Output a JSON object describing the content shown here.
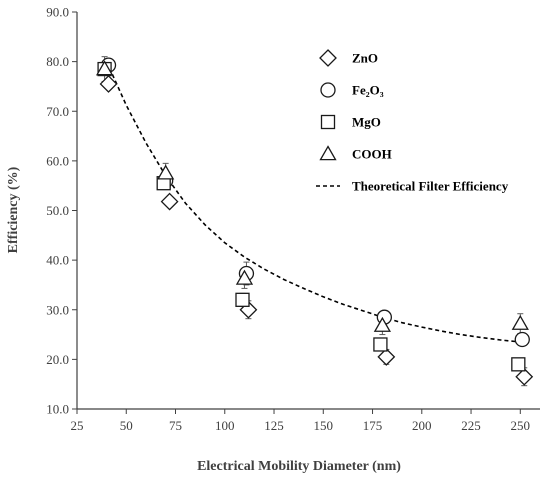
{
  "chart_data": {
    "type": "scatter",
    "xlabel": "Electrical Mobility Diameter (nm)",
    "ylabel": "Efficiency (%)",
    "xlim": [
      25,
      260
    ],
    "ylim": [
      10,
      90
    ],
    "x_ticks": [
      25,
      50,
      75,
      100,
      125,
      150,
      175,
      200,
      225,
      250
    ],
    "y_ticks": [
      10,
      20,
      30,
      40,
      50,
      60,
      70,
      80,
      90
    ],
    "x_tick_labels": [
      "25",
      "50",
      "75",
      "100",
      "125",
      "150",
      "175",
      "200",
      "225",
      "250"
    ],
    "y_tick_labels": [
      "10.0",
      "20.0",
      "30.0",
      "40.0",
      "50.0",
      "60.0",
      "70.0",
      "80.0",
      "90.0"
    ],
    "grid": false,
    "legend_position": "top-right",
    "series": [
      {
        "name": "ZnO",
        "marker": "diamond",
        "points": [
          {
            "x": 41,
            "y": 75.5,
            "err": 0.5
          },
          {
            "x": 72,
            "y": 51.8,
            "err": 0.8
          },
          {
            "x": 112,
            "y": 30.0,
            "err": 1.8
          },
          {
            "x": 182,
            "y": 20.5,
            "err": 1.5
          },
          {
            "x": 252,
            "y": 16.5,
            "err": 1.8
          }
        ]
      },
      {
        "name": "Fe₂O₃",
        "marker": "circle",
        "points": [
          {
            "x": 41,
            "y": 79.3,
            "err": 0.5
          },
          {
            "x": 70,
            "y": 56.0,
            "err": 0.8
          },
          {
            "x": 111,
            "y": 37.3,
            "err": 2.3
          },
          {
            "x": 181,
            "y": 28.5,
            "err": 1.3
          },
          {
            "x": 251,
            "y": 24.0,
            "err": 1.3
          }
        ]
      },
      {
        "name": "MgO",
        "marker": "square",
        "points": [
          {
            "x": 39,
            "y": 78.5,
            "err": 0.5
          },
          {
            "x": 69,
            "y": 55.5,
            "err": 0.8
          },
          {
            "x": 109,
            "y": 32.0,
            "err": 1.3
          },
          {
            "x": 179,
            "y": 23.0,
            "err": 1.3
          },
          {
            "x": 249,
            "y": 19.0,
            "err": 1.0
          }
        ]
      },
      {
        "name": "COOH",
        "marker": "triangle",
        "points": [
          {
            "x": 39,
            "y": 78.5,
            "err": 2.5
          },
          {
            "x": 70,
            "y": 57.5,
            "err": 2.0
          },
          {
            "x": 110,
            "y": 36.3,
            "err": 2.0
          },
          {
            "x": 180,
            "y": 26.8,
            "err": 1.8
          },
          {
            "x": 250,
            "y": 27.2,
            "err": 2.0
          }
        ]
      },
      {
        "name": "Theoretical Filter Efficiency",
        "marker": "dashed-line",
        "x": [
          40,
          50,
          60,
          70,
          80,
          90,
          100,
          110,
          120,
          130,
          140,
          150,
          160,
          170,
          180,
          190,
          200,
          210,
          220,
          230,
          240,
          250
        ],
        "values": [
          80.0,
          71.2,
          63.6,
          57.0,
          51.5,
          47.1,
          43.5,
          40.6,
          38.2,
          36.1,
          34.3,
          32.6,
          31.1,
          29.8,
          28.5,
          27.4,
          26.5,
          25.7,
          25.0,
          24.4,
          23.9,
          23.5
        ]
      }
    ],
    "legend": [
      {
        "label": "ZnO",
        "marker": "diamond"
      },
      {
        "label": "Fe₂O₃",
        "marker": "circle"
      },
      {
        "label": "MgO",
        "marker": "square"
      },
      {
        "label": "COOH",
        "marker": "triangle"
      },
      {
        "label": "Theoretical Filter Efficiency",
        "marker": "dashed-line"
      }
    ],
    "colors": {
      "axis": "#404040",
      "marker_stroke": "#1a1a1a",
      "marker_fill": "#ffffff",
      "curve": "#000000",
      "error_bar": "#595959"
    }
  }
}
